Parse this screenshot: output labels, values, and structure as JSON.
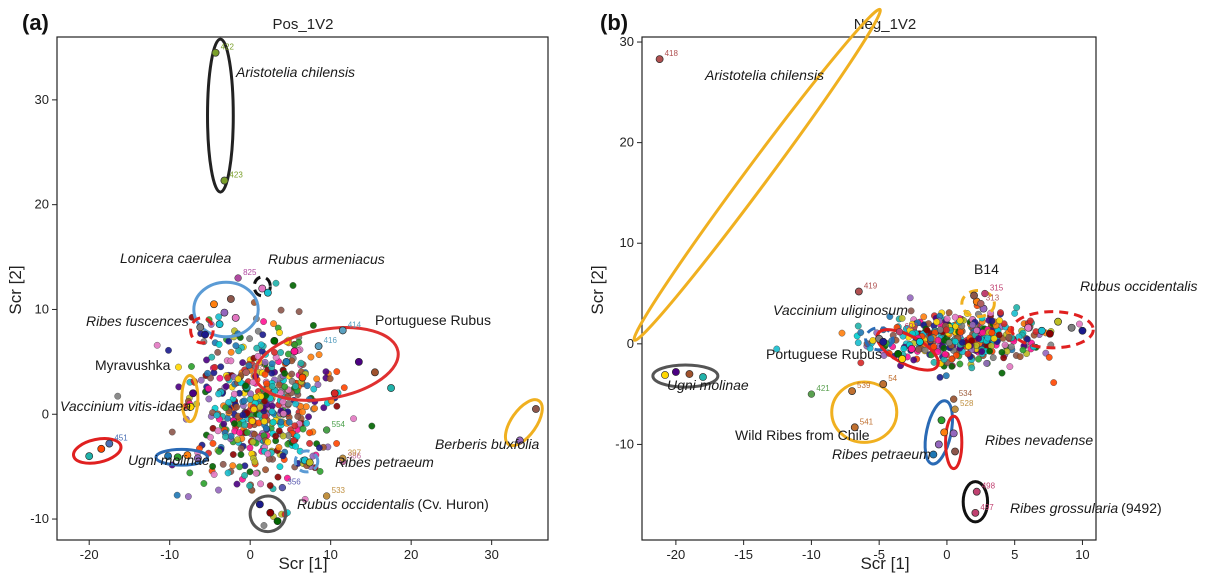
{
  "chart_data": [
    {
      "type": "scatter",
      "panel_label": "(a)",
      "title": "Pos_1V2",
      "xlabel": "Scr [1]",
      "ylabel": "Scr [2]",
      "xlim": [
        -24,
        37
      ],
      "ylim": [
        -12,
        36
      ],
      "xticks": [
        -20,
        -10,
        0,
        10,
        20,
        30
      ],
      "yticks": [
        -10,
        0,
        10,
        20,
        30
      ],
      "labeled_points": [
        {
          "label": "422",
          "x": -4.3,
          "y": 34.5,
          "color": "#7a9f2a"
        },
        {
          "label": "423",
          "x": -3.2,
          "y": 22.3,
          "color": "#7a9f2a"
        },
        {
          "label": "451",
          "x": -17.5,
          "y": -2.8,
          "color": "#4a6fb5"
        },
        {
          "label": "414",
          "x": 11.5,
          "y": 8.0,
          "color": "#5aa0c0"
        },
        {
          "label": "416",
          "x": 8.5,
          "y": 6.5,
          "color": "#5aa0c0"
        },
        {
          "label": "554",
          "x": 9.5,
          "y": -1.5,
          "color": "#4aa04a"
        },
        {
          "label": "825",
          "x": -1.5,
          "y": 13.0,
          "color": "#b04aa0"
        },
        {
          "label": "386",
          "x": 11.5,
          "y": -4.5,
          "color": "#c06aa0"
        },
        {
          "label": "356",
          "x": 4.0,
          "y": -7.0,
          "color": "#5a5ab0"
        },
        {
          "label": "533",
          "x": 9.5,
          "y": -7.8,
          "color": "#c09040"
        },
        {
          "label": "318",
          "x": -0.5,
          "y": 4.0,
          "color": "#b06060"
        },
        {
          "label": "397",
          "x": 11.5,
          "y": -4.2,
          "color": "#c09040"
        }
      ],
      "groups": [
        {
          "label": "Aristotelia chilensis",
          "italic": true,
          "ellipse": {
            "cx": -3.7,
            "cy": 28.5,
            "rx": 1.6,
            "ry": 7.3,
            "angle": 0,
            "color": "#222222",
            "dashed": false
          },
          "members": [
            [
              -4.3,
              34.5
            ],
            [
              -3.2,
              22.3
            ]
          ]
        },
        {
          "label": "Lonicera caerulea",
          "italic": true,
          "ellipse": {
            "cx": -3.0,
            "cy": 10.0,
            "rx": 4.0,
            "ry": 2.6,
            "angle": 0,
            "color": "#5b9bd5",
            "dashed": false
          },
          "members": [
            [
              -4.5,
              10.5
            ],
            [
              -3.2,
              9.7
            ],
            [
              -2.4,
              11.0
            ],
            [
              -1.8,
              9.2
            ],
            [
              -3.8,
              8.6
            ]
          ]
        },
        {
          "label": "Rubus armeniacus",
          "italic": true,
          "ellipse": {
            "cx": 1.5,
            "cy": 12.2,
            "rx": 1.0,
            "ry": 0.9,
            "angle": 0,
            "color": "#111111",
            "dashed": true
          },
          "members": [
            [
              1.5,
              12.0
            ],
            [
              2.2,
              11.6
            ]
          ]
        },
        {
          "label": "Ribes fuscences",
          "italic": true,
          "ellipse": {
            "cx": -6.0,
            "cy": 8.0,
            "rx": 1.4,
            "ry": 1.2,
            "angle": 0,
            "color": "#e02020",
            "dashed": true
          },
          "members": [
            [
              -6.2,
              8.3
            ],
            [
              -5.6,
              7.6
            ]
          ]
        },
        {
          "label": "Portuguese Rubus",
          "italic": false,
          "ellipse": {
            "cx": 9.5,
            "cy": 4.8,
            "rx": 9.0,
            "ry": 3.3,
            "angle": -10,
            "color": "#e03030",
            "dashed": false
          },
          "members": [
            [
              3.0,
              7.0
            ],
            [
              5.5,
              6.0
            ],
            [
              8.5,
              6.5
            ],
            [
              11.5,
              8.0
            ],
            [
              13.5,
              5.0
            ],
            [
              15.5,
              4.0
            ],
            [
              17.5,
              2.5
            ],
            [
              6.5,
              3.5
            ],
            [
              10.5,
              2.0
            ],
            [
              4.5,
              5.0
            ]
          ]
        },
        {
          "label": "Myravushka",
          "italic": false,
          "ellipse": {
            "cx": -7.5,
            "cy": 1.5,
            "rx": 1.0,
            "ry": 2.2,
            "angle": 0,
            "color": "#f0b020",
            "dashed": false
          },
          "members": [
            [
              -7.4,
              0.7
            ],
            [
              -7.1,
              2.0
            ]
          ]
        },
        {
          "label": "Vaccinium vitis-idaea",
          "italic": true,
          "ellipse": {
            "cx": -19.0,
            "cy": -3.5,
            "rx": 3.0,
            "ry": 1.1,
            "angle": -12,
            "color": "#e02020",
            "dashed": false
          },
          "members": [
            [
              -20.0,
              -4.0
            ],
            [
              -18.5,
              -3.3
            ],
            [
              -17.5,
              -2.8
            ]
          ]
        },
        {
          "label": "Ugni molinae",
          "italic": true,
          "ellipse": {
            "cx": -8.5,
            "cy": -4.1,
            "rx": 3.2,
            "ry": 0.75,
            "angle": 0,
            "color": "#2a6ab5",
            "dashed": false
          },
          "members": [
            [
              -10.2,
              -4.0
            ],
            [
              -9.0,
              -4.1
            ],
            [
              -7.8,
              -3.9
            ],
            [
              -6.5,
              -4.2
            ]
          ]
        },
        {
          "label": "Berberis buxfolia",
          "italic": true,
          "ellipse": {
            "cx": 34.0,
            "cy": -0.8,
            "rx": 3.3,
            "ry": 1.2,
            "angle": -55,
            "color": "#f0b020",
            "dashed": false
          },
          "members": [
            [
              33.5,
              -2.5
            ],
            [
              35.5,
              0.5
            ]
          ]
        },
        {
          "label": "Ribes petraeum",
          "italic": true,
          "ellipse": {
            "cx": 7.0,
            "cy": -4.5,
            "rx": 1.4,
            "ry": 1.0,
            "angle": 0,
            "color": "#5b9bd5",
            "dashed": true
          },
          "members": [
            [
              6.8,
              -4.4
            ],
            [
              7.4,
              -4.6
            ]
          ]
        },
        {
          "label": "Rubus occidentalis",
          "suffix": "(Cv. Huron)",
          "italic": true,
          "ellipse": {
            "cx": 2.2,
            "cy": -9.5,
            "rx": 2.2,
            "ry": 1.7,
            "angle": 35,
            "color": "#555555",
            "dashed": false
          },
          "members": [
            [
              1.2,
              -8.6
            ],
            [
              2.5,
              -9.4
            ],
            [
              3.4,
              -10.2
            ]
          ]
        }
      ]
    },
    {
      "type": "scatter",
      "panel_label": "(b)",
      "title": "Neg_1V2",
      "xlabel": "Scr [1]",
      "ylabel": "Scr [2]",
      "xlim": [
        -22.5,
        11
      ],
      "ylim": [
        -19.5,
        30.5
      ],
      "xticks": [
        -20,
        -15,
        -10,
        -5,
        0,
        5,
        10
      ],
      "yticks": [
        -10,
        0,
        10,
        20,
        30
      ],
      "labeled_points": [
        {
          "label": "418",
          "x": -21.2,
          "y": 28.3,
          "color": "#b05050"
        },
        {
          "label": "419",
          "x": -6.5,
          "y": 5.2,
          "color": "#b05050"
        },
        {
          "label": "421",
          "x": -10.0,
          "y": -5.0,
          "color": "#5aa050"
        },
        {
          "label": "539",
          "x": -7.0,
          "y": -4.7,
          "color": "#c07030"
        },
        {
          "label": "541",
          "x": -6.8,
          "y": -8.3,
          "color": "#c07030"
        },
        {
          "label": "54",
          "x": -4.7,
          "y": -4.0,
          "color": "#c07030"
        },
        {
          "label": "534",
          "x": 0.5,
          "y": -5.5,
          "color": "#a06040"
        },
        {
          "label": "528",
          "x": 0.6,
          "y": -6.5,
          "color": "#c09040"
        },
        {
          "label": "498",
          "x": 2.2,
          "y": -14.7,
          "color": "#c04070"
        },
        {
          "label": "497",
          "x": 2.1,
          "y": -16.8,
          "color": "#c04070"
        },
        {
          "label": "315",
          "x": 2.8,
          "y": 5.0,
          "color": "#c04070"
        },
        {
          "label": "313",
          "x": 2.5,
          "y": 4.0,
          "color": "#b06060"
        },
        {
          "label": "603",
          "x": -3.5,
          "y": 1.2,
          "color": "#c04070"
        }
      ],
      "groups": [
        {
          "label": "Aristotelia chilensis",
          "italic": true,
          "ellipse": {
            "cx": -14.0,
            "cy": 16.8,
            "rx": 15.2,
            "ry": 1.1,
            "angle": -53.4,
            "color": "#f0b020",
            "dashed": false
          },
          "members": [
            [
              -21.2,
              28.3
            ],
            [
              -6.5,
              5.2
            ]
          ]
        },
        {
          "label": "B14",
          "italic": false,
          "ellipse": {
            "cx": 2.3,
            "cy": 4.0,
            "rx": 1.2,
            "ry": 1.3,
            "angle": 0,
            "color": "#f0b020",
            "dashed": true
          },
          "members": [
            [
              2.2,
              4.2
            ],
            [
              2.7,
              3.5
            ],
            [
              2.0,
              4.8
            ]
          ]
        },
        {
          "label": "Rubus occidentalis",
          "italic": true,
          "ellipse": {
            "cx": 7.8,
            "cy": 1.4,
            "rx": 3.0,
            "ry": 1.8,
            "angle": 0,
            "color": "#e02020",
            "dashed": true
          },
          "members": [
            [
              6.0,
              1.6
            ],
            [
              7.0,
              1.3
            ],
            [
              8.2,
              2.2
            ],
            [
              9.2,
              1.6
            ],
            [
              10.0,
              1.3
            ],
            [
              7.6,
              1.0
            ]
          ]
        },
        {
          "label": "Vaccinium uliginosum",
          "italic": true,
          "ellipse": {
            "cx": -5.0,
            "cy": 0.5,
            "rx": 1.0,
            "ry": 1.1,
            "angle": 0,
            "color": "#2a6ab5",
            "dashed": true
          },
          "members": [
            [
              -5.0,
              0.5
            ],
            [
              -4.7,
              0.2
            ]
          ]
        },
        {
          "label": "Portuguese Rubus",
          "italic": false,
          "ellipse": {
            "cx": -2.9,
            "cy": -0.6,
            "rx": 2.5,
            "ry": 1.4,
            "angle": 28,
            "color": "#e02020",
            "dashed": false
          },
          "members": [
            [
              -3.6,
              -1.0
            ],
            [
              -2.6,
              -0.5
            ],
            [
              -2.0,
              0.2
            ],
            [
              -3.3,
              -1.5
            ]
          ]
        },
        {
          "label": "Ugni molinae",
          "italic": true,
          "ellipse": {
            "cx": -19.3,
            "cy": -3.2,
            "rx": 2.4,
            "ry": 1.1,
            "angle": 0,
            "color": "#555555",
            "dashed": false
          },
          "members": [
            [
              -20.8,
              -3.1
            ],
            [
              -20.0,
              -2.8
            ],
            [
              -19.0,
              -3.0
            ],
            [
              -18.0,
              -3.3
            ]
          ]
        },
        {
          "label": "Wild Ribes from Chile",
          "italic": false,
          "ellipse": {
            "cx": -6.1,
            "cy": -6.8,
            "rx": 2.4,
            "ry": 3.0,
            "angle": 0,
            "color": "#f0b020",
            "dashed": false
          },
          "members": [
            [
              -7.0,
              -4.7
            ],
            [
              -6.8,
              -8.3
            ],
            [
              -4.7,
              -4.0
            ]
          ]
        },
        {
          "label": "Ribes petraeum",
          "italic": true,
          "ellipse": {
            "cx": -0.6,
            "cy": -8.8,
            "rx": 0.9,
            "ry": 3.2,
            "angle": 12,
            "color": "#2a6ab5",
            "dashed": false
          },
          "members": [
            [
              -1.0,
              -11.0
            ],
            [
              -0.4,
              -7.6
            ],
            [
              -0.2,
              -8.8
            ],
            [
              -0.6,
              -10.0
            ]
          ]
        },
        {
          "label": "Ribes nevadense",
          "italic": true,
          "ellipse": {
            "cx": 0.5,
            "cy": -9.8,
            "rx": 0.6,
            "ry": 2.6,
            "angle": 0,
            "color": "#e02020",
            "dashed": false
          },
          "members": [
            [
              0.5,
              -8.9
            ],
            [
              0.6,
              -10.7
            ]
          ]
        },
        {
          "label": "Ribes grossularia",
          "suffix": "(9492)",
          "italic": true,
          "ellipse": {
            "cx": 2.1,
            "cy": -15.7,
            "rx": 0.9,
            "ry": 2.0,
            "angle": 0,
            "color": "#111111",
            "dashed": false
          },
          "members": [
            [
              2.2,
              -14.7
            ],
            [
              2.1,
              -16.8
            ]
          ]
        }
      ]
    }
  ]
}
